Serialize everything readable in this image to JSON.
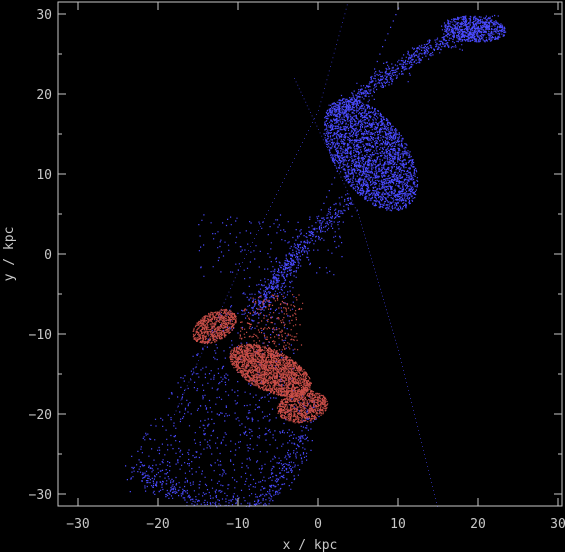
{
  "chart_data": {
    "type": "scatter",
    "xlabel": "x / kpc",
    "ylabel": "y / kpc",
    "xlim": [
      -32.5,
      30.5
    ],
    "ylim": [
      -31.5,
      31.5
    ],
    "xticks": [
      -30,
      -20,
      -10,
      0,
      10,
      20,
      30
    ],
    "yticks": [
      -30,
      -20,
      -10,
      0,
      10,
      20,
      30
    ],
    "background": "#000000",
    "axis_color": "#c8c8c8",
    "series": [
      {
        "color": "#4a4aff",
        "components": [
          {
            "kind": "ellipse",
            "cx": 6.5,
            "cy": 12.5,
            "rx": 4.5,
            "ry": 8,
            "rot": 35,
            "n": 2600
          },
          {
            "kind": "ellipse",
            "cx": 19.5,
            "cy": 28.2,
            "rx": 4,
            "ry": 1.6,
            "rot": -5,
            "n": 600
          },
          {
            "kind": "path",
            "pts": [
              [
                22,
                29
              ],
              [
                14,
                26
              ],
              [
                8,
                22
              ],
              [
                2,
                17.5
              ]
            ],
            "width": 0.9,
            "n": 700
          },
          {
            "kind": "path",
            "pts": [
              [
                4,
                7
              ],
              [
                -2,
                1
              ],
              [
                -5,
                -3
              ],
              [
                -8,
                -7
              ]
            ],
            "width": 1.1,
            "n": 500
          },
          {
            "kind": "path",
            "pts": [
              [
                -23,
                -27
              ],
              [
                -15,
                -31
              ],
              [
                -8,
                -31.5
              ],
              [
                -3,
                -26
              ],
              [
                -1,
                -18
              ]
            ],
            "width": 1.2,
            "n": 500
          },
          {
            "kind": "rect",
            "x0": -24,
            "x1": -3,
            "y0": -30,
            "y1": -3,
            "n": 1100
          },
          {
            "kind": "rect",
            "x0": -15,
            "x1": 3,
            "y0": -3,
            "y1": 5,
            "n": 150
          }
        ],
        "sparse_line": [
          [
            -6,
            -10
          ],
          [
            -2,
            0
          ],
          [
            3,
            12
          ],
          [
            8,
            26
          ],
          [
            13,
            38
          ]
        ]
      },
      {
        "color": "#c84d47",
        "components": [
          {
            "kind": "ellipse",
            "cx": -6,
            "cy": -14.5,
            "rx": 5.5,
            "ry": 2.6,
            "rot": -25,
            "n": 2200
          },
          {
            "kind": "ellipse",
            "cx": -13,
            "cy": -9,
            "rx": 3,
            "ry": 1.8,
            "rot": 30,
            "n": 700
          },
          {
            "kind": "ellipse",
            "cx": -2,
            "cy": -19,
            "rx": 3.2,
            "ry": 2,
            "rot": 10,
            "n": 800
          },
          {
            "kind": "rect",
            "x0": -10,
            "x1": -2,
            "y0": -12,
            "y1": -5,
            "n": 250
          }
        ]
      }
    ],
    "faint_curves": [
      {
        "color": "#2a2a9a",
        "pts": [
          [
            -18,
            -20
          ],
          [
            -10,
            -2
          ],
          [
            0,
            18
          ],
          [
            6,
            40
          ]
        ],
        "n": 120
      },
      {
        "color": "#2a2a9a",
        "pts": [
          [
            -3,
            22
          ],
          [
            5,
            5
          ],
          [
            10,
            -12
          ],
          [
            15,
            -32
          ]
        ],
        "n": 120
      }
    ]
  }
}
